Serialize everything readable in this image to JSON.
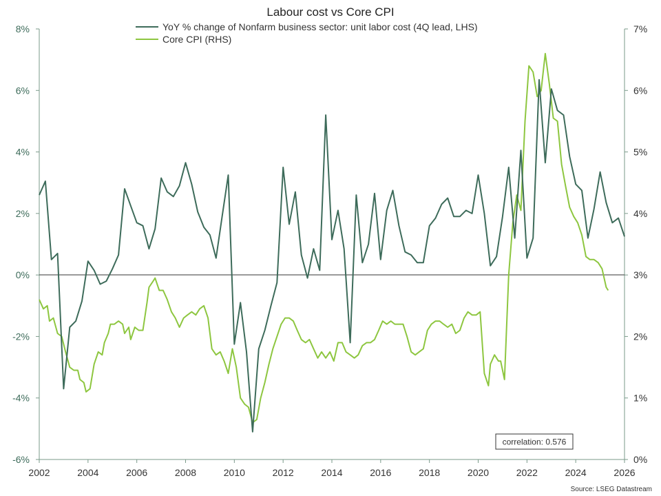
{
  "chart_data": {
    "type": "line",
    "title": "Labour cost vs Core CPI",
    "source": "Source: LSEG Datastream",
    "annotation": "correlation: 0.576",
    "x_ticks": [
      "2002",
      "2004",
      "2006",
      "2008",
      "2010",
      "2012",
      "2014",
      "2016",
      "2018",
      "2020",
      "2022",
      "2024",
      "2026"
    ],
    "xlim": [
      2002,
      2026
    ],
    "left_axis": {
      "ylim": [
        -6,
        8
      ],
      "ticks": [
        -6,
        -4,
        -2,
        0,
        2,
        4,
        6,
        8
      ],
      "tick_labels": [
        "-6%",
        "-4%",
        "-2%",
        "0%",
        "2%",
        "4%",
        "6%",
        "8%"
      ]
    },
    "right_axis": {
      "ylim": [
        0,
        7
      ],
      "ticks": [
        0,
        1,
        2,
        3,
        4,
        5,
        6,
        7
      ],
      "tick_labels": [
        "0%",
        "1%",
        "2%",
        "3%",
        "4%",
        "5%",
        "6%",
        "7%"
      ]
    },
    "colors": {
      "labor": "#3d6b5a",
      "cpi": "#8dc63f",
      "zero_line": "#333333",
      "axis": "#7a9a8a"
    },
    "series": [
      {
        "name": "YoY % change of Nonfarm business sector: unit labor cost (4Q lead, LHS)",
        "axis": "left",
        "points": [
          [
            2002.0,
            2.6
          ],
          [
            2002.25,
            3.05
          ],
          [
            2002.5,
            0.5
          ],
          [
            2002.75,
            0.7
          ],
          [
            2003.0,
            -3.7
          ],
          [
            2003.25,
            -1.7
          ],
          [
            2003.5,
            -1.5
          ],
          [
            2003.75,
            -0.85
          ],
          [
            2004.0,
            0.45
          ],
          [
            2004.25,
            0.15
          ],
          [
            2004.5,
            -0.3
          ],
          [
            2004.75,
            -0.2
          ],
          [
            2005.0,
            0.2
          ],
          [
            2005.25,
            0.65
          ],
          [
            2005.5,
            2.8
          ],
          [
            2005.75,
            2.25
          ],
          [
            2006.0,
            1.7
          ],
          [
            2006.25,
            1.6
          ],
          [
            2006.5,
            0.85
          ],
          [
            2006.75,
            1.5
          ],
          [
            2007.0,
            3.15
          ],
          [
            2007.25,
            2.7
          ],
          [
            2007.5,
            2.55
          ],
          [
            2007.75,
            2.9
          ],
          [
            2008.0,
            3.65
          ],
          [
            2008.25,
            2.95
          ],
          [
            2008.5,
            2.05
          ],
          [
            2008.75,
            1.55
          ],
          [
            2009.0,
            1.3
          ],
          [
            2009.25,
            0.55
          ],
          [
            2009.5,
            1.9
          ],
          [
            2009.75,
            3.25
          ],
          [
            2010.0,
            -2.25
          ],
          [
            2010.25,
            -0.9
          ],
          [
            2010.5,
            -2.5
          ],
          [
            2010.75,
            -5.1
          ],
          [
            2011.0,
            -2.4
          ],
          [
            2011.25,
            -1.8
          ],
          [
            2011.5,
            -1.0
          ],
          [
            2011.75,
            -0.25
          ],
          [
            2012.0,
            3.5
          ],
          [
            2012.25,
            1.65
          ],
          [
            2012.5,
            2.7
          ],
          [
            2012.75,
            0.65
          ],
          [
            2013.0,
            -0.1
          ],
          [
            2013.25,
            0.85
          ],
          [
            2013.5,
            0.15
          ],
          [
            2013.75,
            5.2
          ],
          [
            2014.0,
            1.15
          ],
          [
            2014.25,
            2.1
          ],
          [
            2014.5,
            0.85
          ],
          [
            2014.75,
            -2.2
          ],
          [
            2015.0,
            2.6
          ],
          [
            2015.25,
            0.4
          ],
          [
            2015.5,
            1.0
          ],
          [
            2015.75,
            2.65
          ],
          [
            2016.0,
            0.5
          ],
          [
            2016.25,
            2.1
          ],
          [
            2016.5,
            2.75
          ],
          [
            2016.75,
            1.6
          ],
          [
            2017.0,
            0.75
          ],
          [
            2017.25,
            0.65
          ],
          [
            2017.5,
            0.4
          ],
          [
            2017.75,
            0.4
          ],
          [
            2018.0,
            1.6
          ],
          [
            2018.25,
            1.85
          ],
          [
            2018.5,
            2.3
          ],
          [
            2018.75,
            2.5
          ],
          [
            2019.0,
            1.9
          ],
          [
            2019.25,
            1.9
          ],
          [
            2019.5,
            2.1
          ],
          [
            2019.75,
            2.0
          ],
          [
            2020.0,
            3.25
          ],
          [
            2020.25,
            2.0
          ],
          [
            2020.5,
            0.3
          ],
          [
            2020.75,
            0.6
          ],
          [
            2021.0,
            1.9
          ],
          [
            2021.25,
            3.5
          ],
          [
            2021.5,
            1.2
          ],
          [
            2021.75,
            4.05
          ],
          [
            2022.0,
            0.55
          ],
          [
            2022.25,
            1.2
          ],
          [
            2022.5,
            6.35
          ],
          [
            2022.75,
            3.65
          ],
          [
            2023.0,
            6.05
          ],
          [
            2023.25,
            5.35
          ],
          [
            2023.5,
            5.2
          ],
          [
            2023.75,
            3.85
          ],
          [
            2024.0,
            2.95
          ],
          [
            2024.25,
            2.75
          ],
          [
            2024.5,
            1.2
          ],
          [
            2024.75,
            2.15
          ],
          [
            2025.0,
            3.35
          ],
          [
            2025.25,
            2.35
          ],
          [
            2025.5,
            1.7
          ],
          [
            2025.75,
            1.85
          ],
          [
            2026.0,
            1.25
          ]
        ]
      },
      {
        "name": "Core CPI (RHS)",
        "axis": "right",
        "points": [
          [
            2002.0,
            2.6
          ],
          [
            2002.17,
            2.45
          ],
          [
            2002.33,
            2.5
          ],
          [
            2002.42,
            2.25
          ],
          [
            2002.58,
            2.3
          ],
          [
            2002.75,
            2.05
          ],
          [
            2002.92,
            2.0
          ],
          [
            2003.08,
            1.75
          ],
          [
            2003.25,
            1.5
          ],
          [
            2003.42,
            1.45
          ],
          [
            2003.58,
            1.45
          ],
          [
            2003.67,
            1.3
          ],
          [
            2003.83,
            1.25
          ],
          [
            2003.92,
            1.1
          ],
          [
            2004.08,
            1.15
          ],
          [
            2004.25,
            1.55
          ],
          [
            2004.42,
            1.75
          ],
          [
            2004.58,
            1.7
          ],
          [
            2004.67,
            1.9
          ],
          [
            2004.83,
            2.05
          ],
          [
            2004.92,
            2.2
          ],
          [
            2005.08,
            2.2
          ],
          [
            2005.25,
            2.25
          ],
          [
            2005.42,
            2.2
          ],
          [
            2005.5,
            2.05
          ],
          [
            2005.67,
            2.15
          ],
          [
            2005.75,
            1.95
          ],
          [
            2005.92,
            2.15
          ],
          [
            2006.08,
            2.1
          ],
          [
            2006.25,
            2.1
          ],
          [
            2006.42,
            2.55
          ],
          [
            2006.5,
            2.8
          ],
          [
            2006.67,
            2.9
          ],
          [
            2006.75,
            2.95
          ],
          [
            2006.92,
            2.75
          ],
          [
            2007.08,
            2.75
          ],
          [
            2007.25,
            2.6
          ],
          [
            2007.42,
            2.4
          ],
          [
            2007.58,
            2.3
          ],
          [
            2007.75,
            2.15
          ],
          [
            2007.92,
            2.3
          ],
          [
            2008.08,
            2.35
          ],
          [
            2008.25,
            2.4
          ],
          [
            2008.42,
            2.35
          ],
          [
            2008.58,
            2.45
          ],
          [
            2008.75,
            2.5
          ],
          [
            2008.92,
            2.3
          ],
          [
            2009.08,
            1.8
          ],
          [
            2009.25,
            1.7
          ],
          [
            2009.42,
            1.75
          ],
          [
            2009.58,
            1.6
          ],
          [
            2009.75,
            1.4
          ],
          [
            2009.92,
            1.8
          ],
          [
            2010.08,
            1.5
          ],
          [
            2010.25,
            1.0
          ],
          [
            2010.42,
            0.9
          ],
          [
            2010.58,
            0.85
          ],
          [
            2010.75,
            0.6
          ],
          [
            2010.92,
            0.65
          ],
          [
            2011.08,
            1.0
          ],
          [
            2011.25,
            1.25
          ],
          [
            2011.42,
            1.55
          ],
          [
            2011.58,
            1.8
          ],
          [
            2011.75,
            2.0
          ],
          [
            2011.92,
            2.2
          ],
          [
            2012.08,
            2.3
          ],
          [
            2012.25,
            2.3
          ],
          [
            2012.42,
            2.25
          ],
          [
            2012.58,
            2.1
          ],
          [
            2012.75,
            1.95
          ],
          [
            2012.92,
            1.9
          ],
          [
            2013.08,
            1.95
          ],
          [
            2013.25,
            1.8
          ],
          [
            2013.42,
            1.65
          ],
          [
            2013.58,
            1.75
          ],
          [
            2013.75,
            1.65
          ],
          [
            2013.92,
            1.75
          ],
          [
            2014.08,
            1.6
          ],
          [
            2014.25,
            1.9
          ],
          [
            2014.42,
            1.9
          ],
          [
            2014.58,
            1.75
          ],
          [
            2014.75,
            1.7
          ],
          [
            2014.92,
            1.65
          ],
          [
            2015.08,
            1.7
          ],
          [
            2015.25,
            1.85
          ],
          [
            2015.42,
            1.9
          ],
          [
            2015.58,
            1.9
          ],
          [
            2015.75,
            1.95
          ],
          [
            2015.92,
            2.1
          ],
          [
            2016.08,
            2.25
          ],
          [
            2016.25,
            2.2
          ],
          [
            2016.42,
            2.25
          ],
          [
            2016.58,
            2.2
          ],
          [
            2016.75,
            2.2
          ],
          [
            2016.92,
            2.2
          ],
          [
            2017.08,
            2.0
          ],
          [
            2017.25,
            1.75
          ],
          [
            2017.42,
            1.7
          ],
          [
            2017.58,
            1.75
          ],
          [
            2017.75,
            1.8
          ],
          [
            2017.92,
            2.1
          ],
          [
            2018.08,
            2.2
          ],
          [
            2018.25,
            2.25
          ],
          [
            2018.42,
            2.25
          ],
          [
            2018.58,
            2.2
          ],
          [
            2018.75,
            2.15
          ],
          [
            2018.92,
            2.2
          ],
          [
            2019.08,
            2.05
          ],
          [
            2019.25,
            2.1
          ],
          [
            2019.42,
            2.3
          ],
          [
            2019.58,
            2.4
          ],
          [
            2019.75,
            2.35
          ],
          [
            2019.92,
            2.35
          ],
          [
            2020.08,
            2.4
          ],
          [
            2020.25,
            1.4
          ],
          [
            2020.42,
            1.2
          ],
          [
            2020.5,
            1.55
          ],
          [
            2020.67,
            1.7
          ],
          [
            2020.83,
            1.6
          ],
          [
            2020.92,
            1.6
          ],
          [
            2021.08,
            1.3
          ],
          [
            2021.25,
            3.0
          ],
          [
            2021.42,
            3.85
          ],
          [
            2021.58,
            4.3
          ],
          [
            2021.75,
            4.05
          ],
          [
            2021.92,
            5.5
          ],
          [
            2022.08,
            6.4
          ],
          [
            2022.25,
            6.3
          ],
          [
            2022.42,
            5.9
          ],
          [
            2022.58,
            6.0
          ],
          [
            2022.75,
            6.6
          ],
          [
            2022.92,
            6.1
          ],
          [
            2023.08,
            5.55
          ],
          [
            2023.25,
            5.5
          ],
          [
            2023.42,
            4.8
          ],
          [
            2023.58,
            4.45
          ],
          [
            2023.75,
            4.1
          ],
          [
            2023.92,
            3.95
          ],
          [
            2024.08,
            3.85
          ],
          [
            2024.25,
            3.65
          ],
          [
            2024.42,
            3.3
          ],
          [
            2024.58,
            3.25
          ],
          [
            2024.75,
            3.25
          ],
          [
            2024.92,
            3.2
          ],
          [
            2025.08,
            3.1
          ],
          [
            2025.25,
            2.8
          ],
          [
            2025.33,
            2.75
          ]
        ]
      }
    ]
  }
}
